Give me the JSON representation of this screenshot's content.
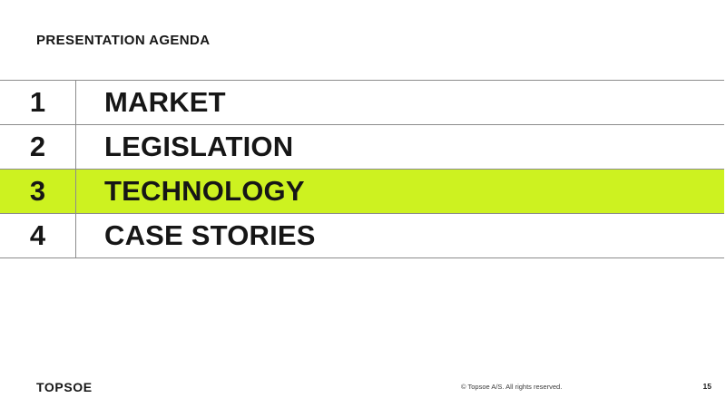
{
  "slide": {
    "title": "PRESENTATION AGENDA",
    "agenda": {
      "items": [
        {
          "number": "1",
          "label": "MARKET",
          "highlighted": false
        },
        {
          "number": "2",
          "label": "LEGISLATION",
          "highlighted": false
        },
        {
          "number": "3",
          "label": "TECHNOLOGY",
          "highlighted": true
        },
        {
          "number": "4",
          "label": "CASE STORIES",
          "highlighted": false
        }
      ]
    },
    "footer": {
      "logo_text": "TOPSOE",
      "copyright": "© Topsoe A/S. All rights reserved.",
      "page_number": "15"
    },
    "colors": {
      "highlight": "#cdf220",
      "line": "#8c8c8c",
      "text": "#161616"
    }
  }
}
